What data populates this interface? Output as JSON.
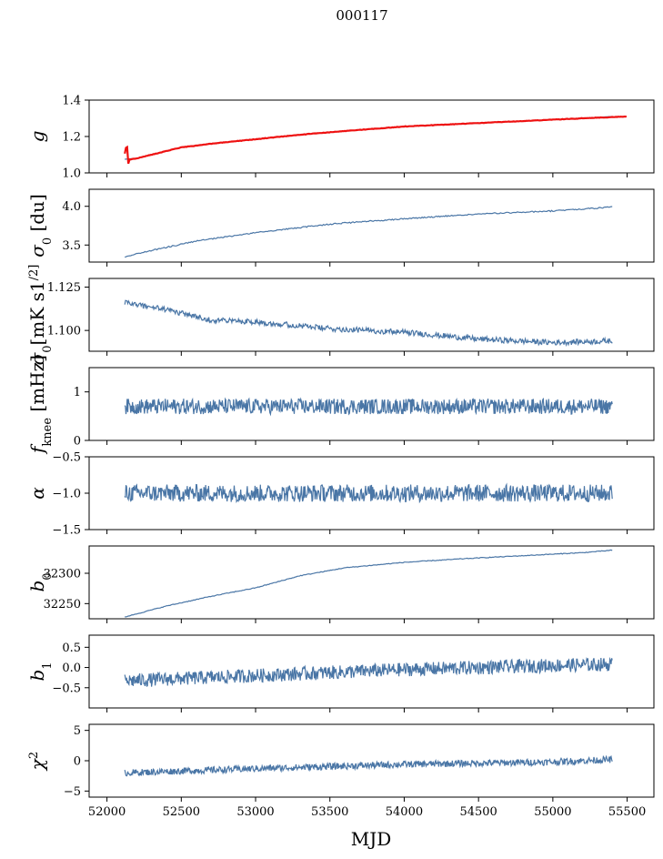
{
  "title": "000117",
  "colors": {
    "series": "#4a76a6",
    "fit": "#ee1111",
    "frame": "#000000"
  },
  "chart_data": [
    {
      "type": "line",
      "id": "g",
      "ylabel": "g",
      "ylim": [
        1.0,
        1.4
      ],
      "yticks": [
        1.0,
        1.2,
        1.4
      ],
      "ytick_labels": [
        "1.0",
        "1.2",
        "1.4"
      ],
      "series": [
        {
          "x": [
            52120,
            52200,
            52300,
            52500,
            52700,
            53000,
            53300,
            53600,
            54000,
            54400,
            54800,
            55200,
            55400
          ],
          "values": [
            1.075,
            1.08,
            1.1,
            1.14,
            1.16,
            1.185,
            1.21,
            1.23,
            1.255,
            1.27,
            1.285,
            1.3,
            1.31
          ]
        },
        {
          "x": [
            52120,
            52200,
            52300,
            52500,
            52700,
            53000,
            53300,
            53600,
            54000,
            54400,
            54800,
            55200,
            55500
          ],
          "values": [
            1.07,
            1.08,
            1.1,
            1.14,
            1.16,
            1.185,
            1.21,
            1.23,
            1.255,
            1.27,
            1.285,
            1.3,
            1.31
          ]
        }
      ]
    },
    {
      "type": "line",
      "id": "sigma0_du",
      "ylabel": "σ0 [du]",
      "ylim": [
        3.28,
        4.22
      ],
      "yticks": [
        3.5,
        4.0
      ],
      "ytick_labels": [
        "3.5",
        "4.0"
      ],
      "series": [
        {
          "x": [
            52120,
            52300,
            52600,
            53000,
            53500,
            54000,
            54500,
            55000,
            55400
          ],
          "values": [
            3.35,
            3.43,
            3.55,
            3.66,
            3.77,
            3.84,
            3.9,
            3.94,
            3.99
          ]
        }
      ]
    },
    {
      "type": "line",
      "id": "sigma0_mk",
      "ylabel": "σ0[mK s1/2]",
      "ylim": [
        1.088,
        1.13
      ],
      "yticks": [
        1.1,
        1.125
      ],
      "ytick_labels": [
        "1.100",
        "1.125"
      ],
      "series": [
        {
          "x": [
            52120,
            52400,
            52700,
            53000,
            53500,
            54000,
            54500,
            55000,
            55400
          ],
          "values": [
            1.116,
            1.112,
            1.106,
            1.105,
            1.101,
            1.099,
            1.095,
            1.093,
            1.094
          ]
        }
      ]
    },
    {
      "type": "line",
      "id": "fknee",
      "ylabel": "fknee [mHz]",
      "ylim": [
        0,
        1.5
      ],
      "yticks": [
        0,
        1
      ],
      "ytick_labels": [
        "0",
        "1"
      ],
      "series": [
        {
          "x": [
            52120,
            53000,
            54000,
            55000,
            55400
          ],
          "values": [
            0.7,
            0.7,
            0.7,
            0.7,
            0.7
          ]
        }
      ]
    },
    {
      "type": "line",
      "id": "alpha",
      "ylabel": "α",
      "ylim": [
        -1.5,
        -0.5
      ],
      "yticks": [
        -1.5,
        -1.0,
        -0.5
      ],
      "ytick_labels": [
        "−1.5",
        "−1.0",
        "−0.5"
      ],
      "series": [
        {
          "x": [
            52120,
            53000,
            54000,
            55000,
            55400
          ],
          "values": [
            -1.0,
            -1.0,
            -1.0,
            -1.0,
            -1.0
          ]
        }
      ]
    },
    {
      "type": "line",
      "id": "b0",
      "ylabel": "b0",
      "ylim": [
        32225,
        32345
      ],
      "yticks": [
        32250,
        32300
      ],
      "ytick_labels": [
        "32250",
        "32300"
      ],
      "series": [
        {
          "x": [
            52120,
            52400,
            52700,
            53000,
            53300,
            53600,
            54000,
            54400,
            54800,
            55200,
            55400
          ],
          "values": [
            32228,
            32246,
            32262,
            32276,
            32296,
            32309,
            32318,
            32324,
            32329,
            32334,
            32338
          ]
        }
      ]
    },
    {
      "type": "line",
      "id": "b1",
      "ylabel": "b1",
      "ylim": [
        -1.0,
        0.8
      ],
      "yticks": [
        -0.5,
        0.0,
        0.5
      ],
      "ytick_labels": [
        "−0.5",
        "0.0",
        "0.5"
      ],
      "series": [
        {
          "x": [
            52120,
            53000,
            54000,
            55000,
            55400
          ],
          "values": [
            -0.33,
            -0.2,
            -0.05,
            0.05,
            0.08
          ]
        }
      ]
    },
    {
      "type": "line",
      "id": "chi2",
      "ylabel": "χ2",
      "ylim": [
        -6,
        6
      ],
      "yticks": [
        -5,
        0,
        5
      ],
      "ytick_labels": [
        "−5",
        "0",
        "5"
      ],
      "series": [
        {
          "x": [
            52120,
            53000,
            54000,
            55000,
            55400
          ],
          "values": [
            -2.0,
            -1.3,
            -0.6,
            -0.2,
            0.2
          ]
        }
      ]
    }
  ],
  "xaxis": {
    "label": "MJD",
    "xlim": [
      51880,
      55680
    ],
    "ticks": [
      52000,
      52500,
      53000,
      53500,
      54000,
      54500,
      55000,
      55500
    ],
    "tick_labels": [
      "52000",
      "52500",
      "53000",
      "53500",
      "54000",
      "54500",
      "55000",
      "55500"
    ]
  }
}
